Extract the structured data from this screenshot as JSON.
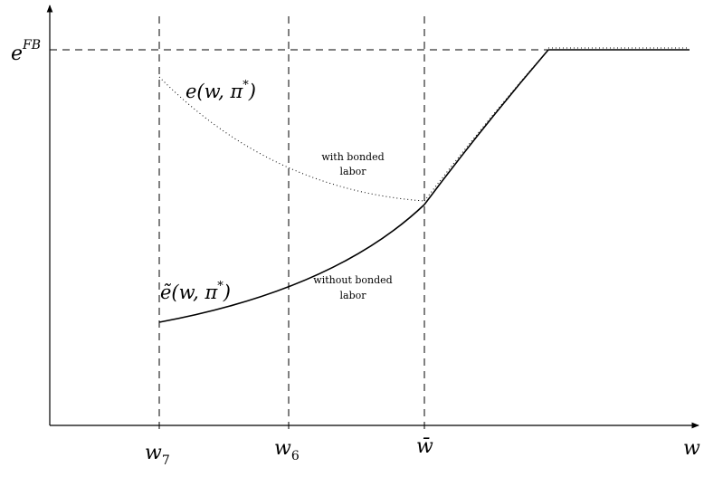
{
  "labels": {
    "y_level": "e",
    "y_level_sup": "FB",
    "x_axis": "w",
    "curve_upper_head": "e(w, π",
    "curve_upper_star": "*",
    "curve_upper_tail": ")",
    "curve_lower_head": "ẽ(w, π",
    "curve_lower_star": "*",
    "curve_lower_tail": ")",
    "note_upper_line1": "with bonded",
    "note_upper_line2": "labor",
    "note_lower_line1": "without bonded",
    "note_lower_line2": "labor"
  },
  "ticks": [
    {
      "base": "w",
      "sub": "7"
    },
    {
      "base": "w",
      "sub": "6"
    },
    {
      "base": "w̄",
      "sub": ""
    }
  ]
}
